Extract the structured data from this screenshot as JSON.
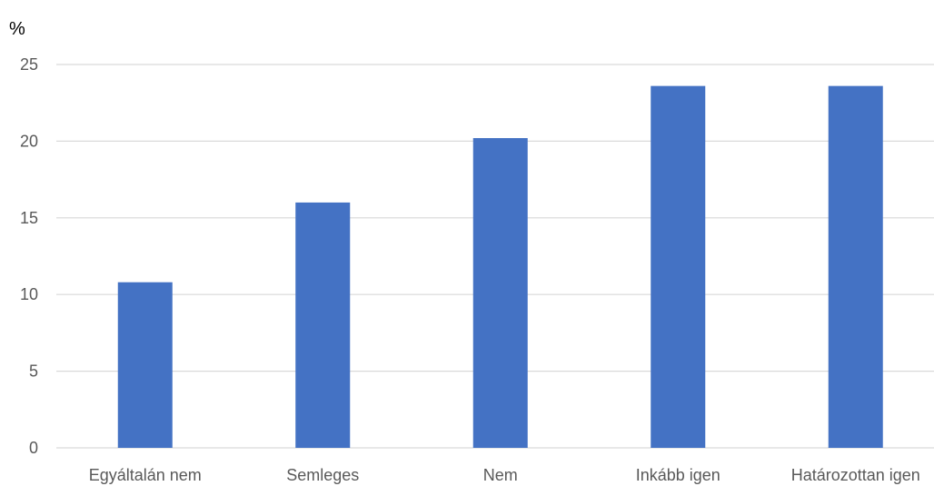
{
  "chart_data": {
    "type": "bar",
    "unit_label": "%",
    "categories": [
      "Egyáltalán nem",
      "Semleges",
      "Nem",
      "Inkább igen",
      "Határozottan igen"
    ],
    "values": [
      10.8,
      16.0,
      20.2,
      23.6,
      23.6
    ],
    "y_ticks": [
      0,
      5,
      10,
      15,
      20,
      25
    ],
    "ylim": [
      0,
      25
    ],
    "grid": true,
    "legend": "none",
    "bar_color": "#4472c4",
    "title": "",
    "xlabel": "",
    "ylabel": ""
  }
}
